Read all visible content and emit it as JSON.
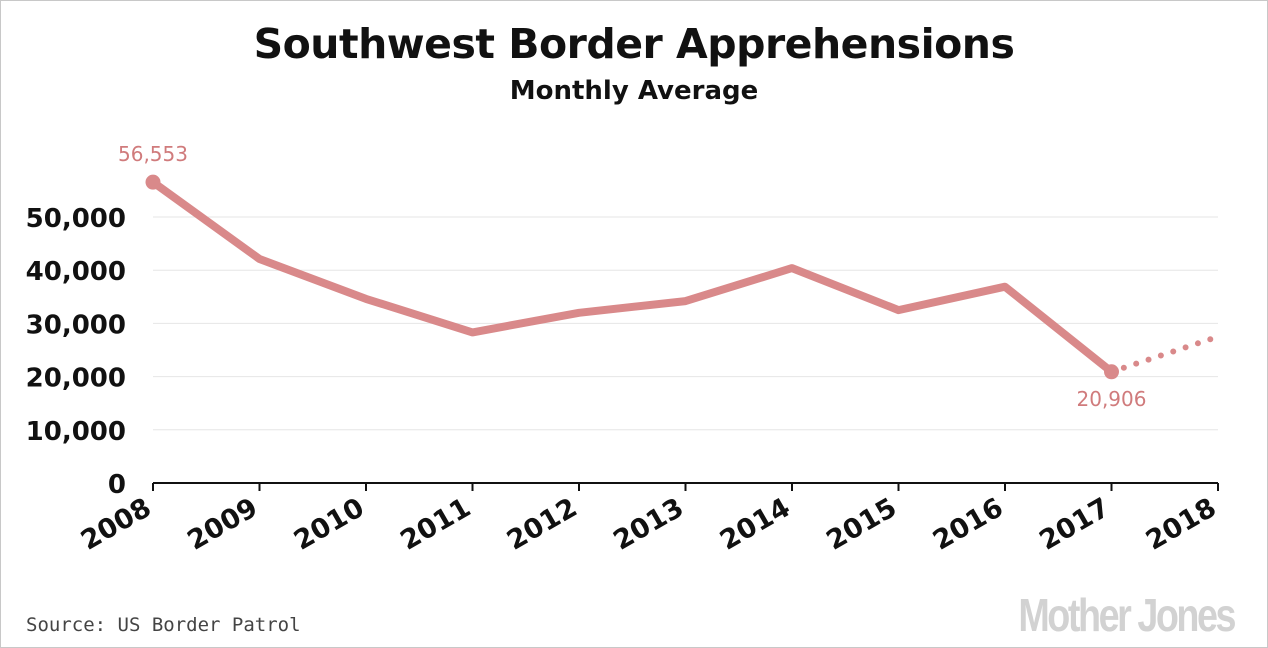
{
  "chart_data": {
    "type": "line",
    "title": "Southwest Border Apprehensions",
    "subtitle": "Monthly Average",
    "x": [
      "2008",
      "2009",
      "2010",
      "2011",
      "2012",
      "2013",
      "2014",
      "2015",
      "2016",
      "2017",
      "2018"
    ],
    "series": [
      {
        "values": [
          56553,
          42100,
          34600,
          28300,
          32000,
          34200,
          40400,
          32500,
          36900,
          20906,
          null
        ],
        "projection": {
          "from": "2017",
          "to": "2018",
          "from_value": 20906,
          "to_value": 27500,
          "style": "dotted"
        }
      }
    ],
    "yticks": [
      {
        "value": 0,
        "label": "0"
      },
      {
        "value": 10000,
        "label": "10,000"
      },
      {
        "value": 20000,
        "label": "20,000"
      },
      {
        "value": 30000,
        "label": "30,000"
      },
      {
        "value": 40000,
        "label": "40,000"
      },
      {
        "value": 50000,
        "label": "50,000"
      }
    ],
    "ylim": [
      0,
      50000
    ],
    "annotations": [
      {
        "x": "2008",
        "value": 56553,
        "label": "56,553"
      },
      {
        "x": "2017",
        "value": 20906,
        "label": "20,906"
      }
    ],
    "grid": true,
    "line_color": "#d9898a",
    "label_color": "#d07b7c"
  },
  "footer": {
    "source": "Source: US Border Patrol",
    "logo": "Mother Jones"
  }
}
